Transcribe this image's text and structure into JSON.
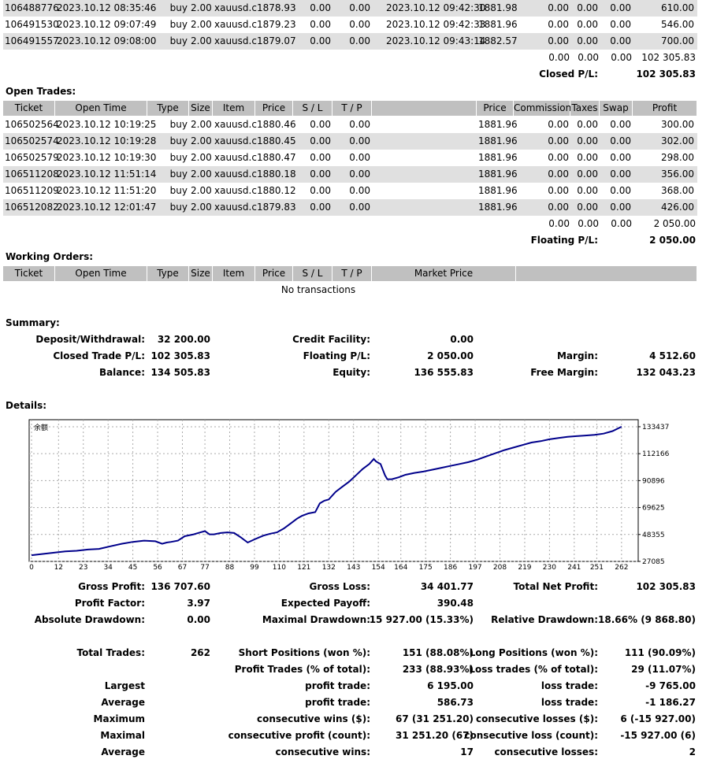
{
  "closed_rows": [
    [
      "106488776",
      "2023.10.12 08:35:46",
      "buy",
      "2.00",
      "xauusd.c",
      "1878.93",
      "0.00",
      "0.00",
      "2023.10.12 09:42:30",
      "1881.98",
      "0.00",
      "0.00",
      "0.00",
      "610.00"
    ],
    [
      "106491530",
      "2023.10.12 09:07:49",
      "buy",
      "2.00",
      "xauusd.c",
      "1879.23",
      "0.00",
      "0.00",
      "2023.10.12 09:42:33",
      "1881.96",
      "0.00",
      "0.00",
      "0.00",
      "546.00"
    ],
    [
      "106491557",
      "2023.10.12 09:08:00",
      "buy",
      "2.00",
      "xauusd.c",
      "1879.07",
      "0.00",
      "0.00",
      "2023.10.12 09:43:14",
      "1882.57",
      "0.00",
      "0.00",
      "0.00",
      "700.00"
    ]
  ],
  "closed_totals": [
    "0.00",
    "0.00",
    "0.00",
    "102 305.83"
  ],
  "closed_pl_label": "Closed P/L:",
  "closed_pl_value": "102 305.83",
  "open_title": "Open Trades:",
  "open_headers": [
    "Ticket",
    "Open Time",
    "Type",
    "Size",
    "Item",
    "Price",
    "S / L",
    "T / P",
    "",
    "Price",
    "Commission",
    "Taxes",
    "Swap",
    "Profit"
  ],
  "open_rows": [
    [
      "106502564",
      "2023.10.12 10:19:25",
      "buy",
      "2.00",
      "xauusd.c",
      "1880.46",
      "0.00",
      "0.00",
      "",
      "1881.96",
      "0.00",
      "0.00",
      "0.00",
      "300.00"
    ],
    [
      "106502574",
      "2023.10.12 10:19:28",
      "buy",
      "2.00",
      "xauusd.c",
      "1880.45",
      "0.00",
      "0.00",
      "",
      "1881.96",
      "0.00",
      "0.00",
      "0.00",
      "302.00"
    ],
    [
      "106502579",
      "2023.10.12 10:19:30",
      "buy",
      "2.00",
      "xauusd.c",
      "1880.47",
      "0.00",
      "0.00",
      "",
      "1881.96",
      "0.00",
      "0.00",
      "0.00",
      "298.00"
    ],
    [
      "106511208",
      "2023.10.12 11:51:14",
      "buy",
      "2.00",
      "xauusd.c",
      "1880.18",
      "0.00",
      "0.00",
      "",
      "1881.96",
      "0.00",
      "0.00",
      "0.00",
      "356.00"
    ],
    [
      "106511209",
      "2023.10.12 11:51:20",
      "buy",
      "2.00",
      "xauusd.c",
      "1880.12",
      "0.00",
      "0.00",
      "",
      "1881.96",
      "0.00",
      "0.00",
      "0.00",
      "368.00"
    ],
    [
      "106512082",
      "2023.10.12 12:01:47",
      "buy",
      "2.00",
      "xauusd.c",
      "1879.83",
      "0.00",
      "0.00",
      "",
      "1881.96",
      "0.00",
      "0.00",
      "0.00",
      "426.00"
    ]
  ],
  "open_totals": [
    "0.00",
    "0.00",
    "0.00",
    "2 050.00"
  ],
  "floating_pl_label": "Floating P/L:",
  "floating_pl_value": "2 050.00",
  "working_title": "Working Orders:",
  "working_headers": [
    "Ticket",
    "Open Time",
    "Type",
    "Size",
    "Item",
    "Price",
    "S / L",
    "T / P",
    "Market Price",
    ""
  ],
  "no_transactions": "No transactions",
  "summary_title": "Summary:",
  "summary": {
    "deposit_label": "Deposit/Withdrawal:",
    "deposit_value": "32 200.00",
    "credit_label": "Credit Facility:",
    "credit_value": "0.00",
    "closed_label": "Closed Trade P/L:",
    "closed_value": "102 305.83",
    "floating_label": "Floating P/L:",
    "floating_value": "2 050.00",
    "margin_label": "Margin:",
    "margin_value": "4 512.60",
    "balance_label": "Balance:",
    "balance_value": "134 505.83",
    "equity_label": "Equity:",
    "equity_value": "136 555.83",
    "free_margin_label": "Free Margin:",
    "free_margin_value": "132 043.23"
  },
  "details_title": "Details:",
  "chart_data": {
    "type": "line",
    "title": "余额",
    "x_ticks": [
      0,
      12,
      23,
      34,
      45,
      56,
      67,
      77,
      88,
      99,
      110,
      121,
      132,
      143,
      154,
      164,
      175,
      186,
      197,
      208,
      219,
      230,
      241,
      251,
      262
    ],
    "y_ticks": [
      "133437",
      "112166",
      "90896",
      "69625",
      "48355",
      "27085"
    ],
    "ylim": [
      27085,
      139000
    ],
    "xlim": [
      0,
      268
    ],
    "series": [
      {
        "color": "#00008b",
        "x": [
          0,
          5,
          10,
          15,
          20,
          25,
          30,
          35,
          40,
          45,
          50,
          55,
          58,
          60,
          62,
          65,
          68,
          72,
          75,
          77,
          79,
          81,
          84,
          87,
          90,
          93,
          96,
          99,
          101,
          103,
          106,
          109,
          112,
          115,
          118,
          120,
          123,
          126,
          128,
          130,
          132,
          133,
          135,
          138,
          141,
          144,
          147,
          150,
          152,
          153,
          155,
          157,
          158,
          160,
          163,
          166,
          170,
          174,
          178,
          182,
          186,
          190,
          194,
          198,
          202,
          206,
          210,
          214,
          218,
          222,
          226,
          230,
          234,
          238,
          242,
          246,
          250,
          254,
          258,
          262
        ],
        "y": [
          32000,
          33000,
          34000,
          35000,
          35500,
          36500,
          37000,
          39000,
          41000,
          42500,
          43500,
          43000,
          41000,
          42000,
          42500,
          43500,
          47000,
          48500,
          50000,
          51000,
          48500,
          48500,
          49500,
          50000,
          49500,
          46000,
          42000,
          44500,
          46000,
          47500,
          49000,
          50000,
          53000,
          57000,
          61000,
          63000,
          65000,
          66000,
          73000,
          75000,
          76000,
          78000,
          82000,
          86000,
          90000,
          95000,
          100000,
          104000,
          108000,
          106000,
          104000,
          95000,
          92000,
          92000,
          93500,
          95500,
          97000,
          98000,
          99500,
          101000,
          102500,
          104000,
          105500,
          107500,
          110000,
          112500,
          115000,
          117000,
          119000,
          121000,
          122000,
          123500,
          124500,
          125500,
          126000,
          126500,
          127000,
          128000,
          130000,
          133437
        ]
      }
    ]
  },
  "stats": {
    "gross_profit_label": "Gross Profit:",
    "gross_profit_value": "136 707.60",
    "gross_loss_label": "Gross Loss:",
    "gross_loss_value": "34 401.77",
    "total_net_label": "Total Net Profit:",
    "total_net_value": "102 305.83",
    "profit_factor_label": "Profit Factor:",
    "profit_factor_value": "3.97",
    "expected_payoff_label": "Expected Payoff:",
    "expected_payoff_value": "390.48",
    "abs_dd_label": "Absolute Drawdown:",
    "abs_dd_value": "0.00",
    "max_dd_label": "Maximal Drawdown:",
    "max_dd_value": "15 927.00 (15.33%)",
    "rel_dd_label": "Relative Drawdown:",
    "rel_dd_value": "18.66% (9 868.80)",
    "total_trades_label": "Total Trades:",
    "total_trades_value": "262",
    "short_label": "Short Positions (won %):",
    "short_value": "151 (88.08%)",
    "long_label": "Long Positions (won %):",
    "long_value": "111 (90.09%)",
    "profit_trades_label": "Profit Trades (% of total):",
    "profit_trades_value": "233 (88.93%)",
    "loss_trades_label": "Loss trades (% of total):",
    "loss_trades_value": "29 (11.07%)",
    "largest_label": "Largest",
    "largest_profit_label": "profit trade:",
    "largest_profit_value": "6 195.00",
    "largest_loss_label": "loss trade:",
    "largest_loss_value": "-9 765.00",
    "average_label": "Average",
    "average_profit_label": "profit trade:",
    "average_profit_value": "586.73",
    "average_loss_label": "loss trade:",
    "average_loss_value": "-1 186.27",
    "maximum_label": "Maximum",
    "max_cw_label": "consecutive wins ($):",
    "max_cw_value": "67 (31 251.20)",
    "max_cl_label": "consecutive losses ($):",
    "max_cl_value": "6 (-15 927.00)",
    "maximal_label": "Maximal",
    "maximal_cp_label": "consecutive profit (count):",
    "maximal_cp_value": "31 251.20 (67)",
    "maximal_cl_label": "consecutive loss (count):",
    "maximal_cl_value": "-15 927.00 (6)",
    "average2_label": "Average",
    "avg_cw_label": "consecutive wins:",
    "avg_cw_value": "17",
    "avg_cl_label": "consecutive losses:",
    "avg_cl_value": "2"
  }
}
